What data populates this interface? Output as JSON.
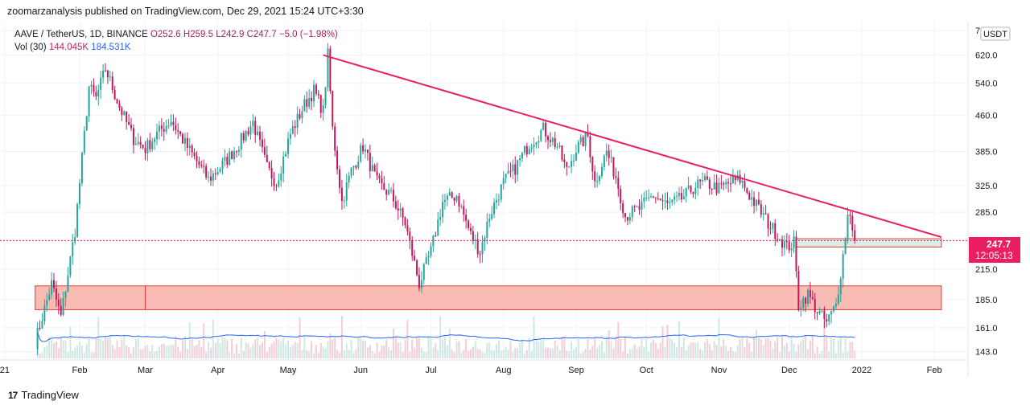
{
  "header": {
    "text": "zoomarzanalysis published on TradingView.com, Dec 29, 2021 15:24 UTC+3:30"
  },
  "legend": {
    "symbol": "AAVE / TetherUS, 1D, BINANCE",
    "open": "O252.6",
    "high": "H259.5",
    "low": "L242.9",
    "close": "C247.7",
    "change": "−5.0 (−1.98%)",
    "vol_label": "Vol (30)",
    "vol_value": "144.045K",
    "vol_ma": "184.531K"
  },
  "axis": {
    "currency_badge": "USDT"
  },
  "price_label": {
    "value": "247.7",
    "countdown": "12:05:13"
  },
  "footer": {
    "brand": "TradingView",
    "logo": "17"
  },
  "colors": {
    "up": "#26a69a",
    "down": "#c2185b",
    "trend": "#e91e63",
    "zone_fill": "#f8b0a8",
    "zone_stroke": "#e53935",
    "box_fill": "#d7ede6",
    "vol_ma": "#2962ff",
    "price_tag": "#e91e63"
  },
  "chart_data": {
    "type": "candlestick",
    "title": "AAVE / TetherUS, 1D, BINANCE",
    "y_scale": "log",
    "ylim": [
      140,
      700
    ],
    "y_ticks": [
      "700.0",
      "620.0",
      "540.0",
      "460.0",
      "385.0",
      "325.0",
      "285.0",
      "215.0",
      "185.0",
      "161.0",
      "143.0"
    ],
    "x_ticks": [
      "21",
      "Feb",
      "Mar",
      "Apr",
      "May",
      "Jun",
      "Jul",
      "Aug",
      "Sep",
      "Oct",
      "Nov",
      "Dec",
      "2022",
      "Feb"
    ],
    "last_price": 247.7,
    "price_path": [
      [
        "Jan 13",
        150
      ],
      [
        "Jan 20",
        200
      ],
      [
        "Jan 24",
        170
      ],
      [
        "Jan 30",
        260
      ],
      [
        "Feb 5",
        530
      ],
      [
        "Feb 8",
        500
      ],
      [
        "Feb 12",
        580
      ],
      [
        "Feb 18",
        480
      ],
      [
        "Feb 24",
        410
      ],
      [
        "Mar 1",
        390
      ],
      [
        "Mar 6",
        420
      ],
      [
        "Mar 12",
        450
      ],
      [
        "Mar 18",
        400
      ],
      [
        "Mar 24",
        360
      ],
      [
        "Mar 28",
        335
      ],
      [
        "Apr 4",
        365
      ],
      [
        "Apr 10",
        400
      ],
      [
        "Apr 16",
        445
      ],
      [
        "Apr 22",
        355
      ],
      [
        "Apr 26",
        330
      ],
      [
        "May 2",
        420
      ],
      [
        "May 8",
        485
      ],
      [
        "May 12",
        520
      ],
      [
        "May 16",
        470
      ],
      [
        "May 18",
        620
      ],
      [
        "May 20",
        430
      ],
      [
        "May 24",
        300
      ],
      [
        "May 28",
        350
      ],
      [
        "Jun 2",
        395
      ],
      [
        "Jun 8",
        330
      ],
      [
        "Jun 14",
        310
      ],
      [
        "Jun 20",
        270
      ],
      [
        "Jun 26",
        200
      ],
      [
        "Jul 1",
        235
      ],
      [
        "Jul 6",
        300
      ],
      [
        "Jul 12",
        310
      ],
      [
        "Jul 18",
        255
      ],
      [
        "Jul 22",
        235
      ],
      [
        "Jul 26",
        280
      ],
      [
        "Aug 1",
        330
      ],
      [
        "Aug 6",
        355
      ],
      [
        "Aug 12",
        400
      ],
      [
        "Aug 18",
        430
      ],
      [
        "Aug 24",
        395
      ],
      [
        "Aug 28",
        350
      ],
      [
        "Sep 1",
        390
      ],
      [
        "Sep 6",
        415
      ],
      [
        "Sep 9",
        330
      ],
      [
        "Sep 14",
        385
      ],
      [
        "Sep 18",
        340
      ],
      [
        "Sep 22",
        280
      ],
      [
        "Sep 28",
        290
      ],
      [
        "Oct 4",
        310
      ],
      [
        "Oct 10",
        295
      ],
      [
        "Oct 16",
        305
      ],
      [
        "Oct 22",
        325
      ],
      [
        "Oct 26",
        330
      ],
      [
        "Nov 1",
        320
      ],
      [
        "Nov 6",
        330
      ],
      [
        "Nov 10",
        335
      ],
      [
        "Nov 14",
        310
      ],
      [
        "Nov 18",
        290
      ],
      [
        "Nov 22",
        270
      ],
      [
        "Nov 26",
        255
      ],
      [
        "Nov 30",
        240
      ],
      [
        "Dec 3",
        245
      ],
      [
        "Dec 5",
        180
      ],
      [
        "Dec 9",
        190
      ],
      [
        "Dec 13",
        175
      ],
      [
        "Dec 17",
        165
      ],
      [
        "Dec 21",
        180
      ],
      [
        "Dec 24",
        230
      ],
      [
        "Dec 26",
        280
      ],
      [
        "Dec 27",
        285
      ],
      [
        "Dec 29",
        247.7
      ]
    ],
    "annotations": {
      "descending_trendline": {
        "from": [
          "May 16",
          620
        ],
        "to": [
          "Feb 4 2022",
          252
        ]
      },
      "support_zone": {
        "from": "Jan 13",
        "to": "Feb 4 2022",
        "ylim": [
          176,
          198
        ]
      },
      "breakout_box": {
        "from": "Dec 4",
        "to": "Feb 4 2022",
        "ylim": [
          240,
          250
        ]
      }
    },
    "volume": {
      "label": "Vol (30)",
      "last": "144.045K",
      "ma": "184.531K"
    }
  }
}
